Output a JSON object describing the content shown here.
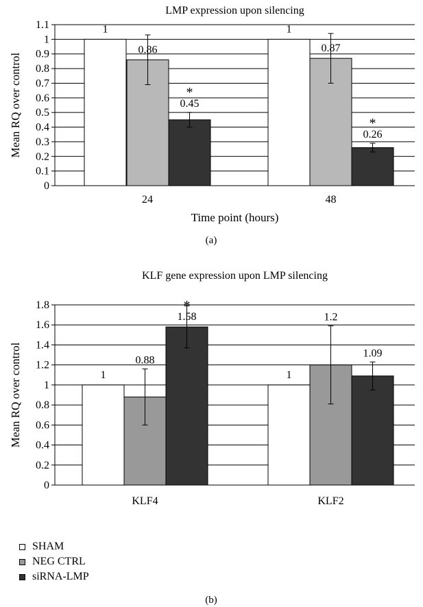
{
  "colors": {
    "SHAM": "#ffffff",
    "NEG CTRL": "#b8b8b8",
    "siRNA-LMP": "#333333",
    "NEG CTRL (b)": "#999999"
  },
  "legend": [
    "SHAM",
    "NEG CTRL",
    "siRNA-LMP"
  ],
  "chart_data": [
    {
      "type": "bar",
      "panel": "(a)",
      "title": "LMP expression upon silencing",
      "xlabel": "Time point (hours)",
      "ylabel": "Mean RQ over control",
      "categories": [
        "24",
        "48"
      ],
      "ylim": [
        0,
        1.1
      ],
      "yticks": [
        "0",
        "0.1",
        "0.2",
        "0.3",
        "0.4",
        "0.5",
        "0.6",
        "0.7",
        "0.8",
        "0.9",
        "1",
        "1.1"
      ],
      "grid": true,
      "series": [
        {
          "name": "SHAM",
          "values": [
            1,
            1
          ],
          "labels": [
            "1",
            "1"
          ],
          "error": [
            0,
            0
          ],
          "significant": [
            false,
            false
          ]
        },
        {
          "name": "NEG CTRL",
          "values": [
            0.86,
            0.87
          ],
          "labels": [
            "0.86",
            "0.87"
          ],
          "error": [
            0.17,
            0.17
          ],
          "significant": [
            false,
            false
          ]
        },
        {
          "name": "siRNA-LMP",
          "values": [
            0.45,
            0.26
          ],
          "labels": [
            "0.45",
            "0.26"
          ],
          "error": [
            0.05,
            0.03
          ],
          "significant": [
            true,
            true
          ]
        }
      ],
      "significance_marker": "*"
    },
    {
      "type": "bar",
      "panel": "(b)",
      "title": "KLF gene expression upon LMP silencing",
      "xlabel": "",
      "ylabel": "Mean RQ over control",
      "categories": [
        "KLF4",
        "KLF2"
      ],
      "ylim": [
        0,
        1.8
      ],
      "yticks": [
        "0",
        "0.2",
        "0.4",
        "0.6",
        "0.8",
        "1",
        "1.2",
        "1.4",
        "1.6",
        "1.8"
      ],
      "grid": true,
      "series": [
        {
          "name": "SHAM",
          "values": [
            1,
            1
          ],
          "labels": [
            "1",
            "1"
          ],
          "error": [
            0,
            0
          ],
          "significant": [
            false,
            false
          ]
        },
        {
          "name": "NEG CTRL",
          "values": [
            0.88,
            1.2
          ],
          "labels": [
            "0.88",
            "1.2"
          ],
          "error": [
            0.28,
            0.39
          ],
          "significant": [
            false,
            false
          ]
        },
        {
          "name": "siRNA-LMP",
          "values": [
            1.58,
            1.09
          ],
          "labels": [
            "1.58",
            "1.09"
          ],
          "error": [
            0.21,
            0.14
          ],
          "significant": [
            true,
            false
          ]
        }
      ],
      "significance_marker": "*"
    }
  ]
}
